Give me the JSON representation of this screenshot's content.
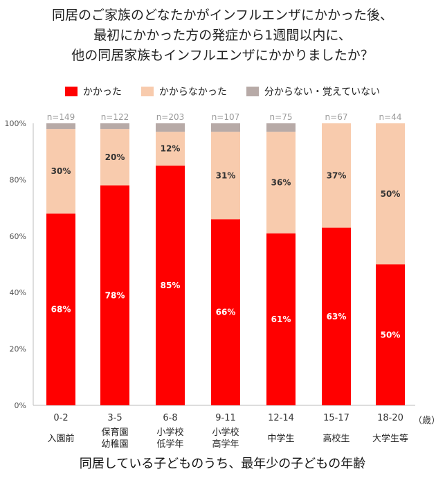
{
  "chart_data": {
    "type": "bar",
    "stacked": true,
    "title_lines": [
      "同居のご家族のどなたかがインフルエンザにかかった後、",
      "最初にかかった方の発症から1週間以内に、",
      "他の同居家族もインフルエンザにかかりましたか？"
    ],
    "categories": [
      "0-2",
      "3-5",
      "6-8",
      "9-11",
      "12-14",
      "15-17",
      "18-20"
    ],
    "category_sublabels": [
      "入園前",
      "保育園\n幼稚園",
      "小学校\n低学年",
      "小学校\n高学年",
      "中学生",
      "高校生",
      "大学生等"
    ],
    "x_unit": "（歳）",
    "xlabel": "同居している子どものうち、最年少の子どもの年齢",
    "n_labels": [
      "n=149",
      "n=122",
      "n=203",
      "n=107",
      "n=75",
      "n=67",
      "n=44"
    ],
    "series": [
      {
        "name": "かかった",
        "color": "#ff0000",
        "values": [
          68,
          78,
          85,
          66,
          61,
          63,
          50
        ],
        "labels": [
          "68%",
          "78%",
          "85%",
          "66%",
          "61%",
          "63%",
          "50%"
        ]
      },
      {
        "name": "かからなかった",
        "color": "#f8cbad",
        "values": [
          30,
          20,
          12,
          31,
          36,
          37,
          50
        ],
        "labels": [
          "30%",
          "20%",
          "12%",
          "31%",
          "36%",
          "37%",
          "50%"
        ]
      },
      {
        "name": "分からない・覚えていない",
        "color": "#b7aaa7",
        "values": [
          2,
          2,
          3,
          3,
          3,
          0,
          0
        ]
      }
    ],
    "ylim": [
      0,
      100
    ],
    "yticks": [
      "0%",
      "20%",
      "40%",
      "60%",
      "80%",
      "100%"
    ],
    "legend_position": "top",
    "grid": false
  }
}
